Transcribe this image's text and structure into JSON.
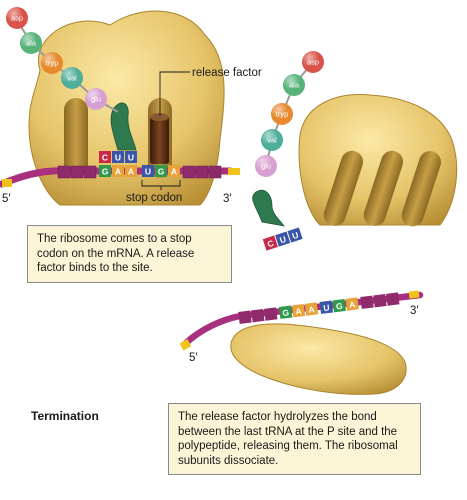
{
  "amino_acids": {
    "a1": "asp",
    "a2": "ala",
    "a3": "tryp",
    "a4": "val",
    "a5": "glu"
  },
  "codons": {
    "anticodon": [
      "C",
      "U",
      "U"
    ],
    "p_site": [
      "G",
      "A",
      "A"
    ],
    "stop": [
      "U",
      "G",
      "A"
    ]
  },
  "labels": {
    "release_factor": "release factor",
    "stop_codon": "stop codon",
    "five_prime": "5′",
    "three_prime": "3′"
  },
  "captions": {
    "step1": "The ribosome comes to a stop codon on the mRNA. A release factor binds to the site.",
    "step2": "The release factor hydrolyzes the bond between the last tRNA at the P site and the polypeptide, releasing them. The ribosomal subunits dissociate."
  },
  "section_title": "Termination",
  "colors": {
    "ribosome": "#e3c56a",
    "mrna": "#a8307e",
    "release_factor": "#5a2e14",
    "trna": "#2e7a4e",
    "caption_box": "#fbf4d6",
    "asp": "#d9534a",
    "ala": "#56b37a",
    "tryp": "#e8892f",
    "val": "#4fae9a",
    "glu": "#d8a0d0"
  }
}
